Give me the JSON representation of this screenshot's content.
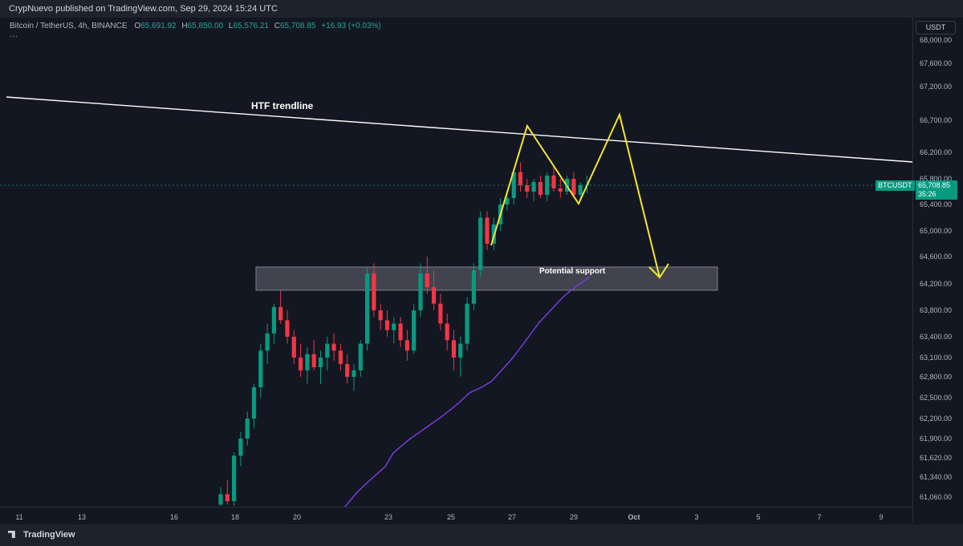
{
  "header": {
    "published": "CrypNuevo published on TradingView.com, Sep 29, 2024 15:24 UTC"
  },
  "legend": {
    "symbol": "Bitcoin / TetherUS, 4h, BINANCE",
    "o_key": "O",
    "o_val": "65,691.92",
    "h_key": "H",
    "h_val": "65,850.00",
    "l_key": "L",
    "l_val": "65,576.21",
    "c_key": "C",
    "c_val": "65,708.85",
    "chg": "+16.93 (+0.03%)",
    "more": "···"
  },
  "price_axis": {
    "currency": "USDT",
    "last_price": "65,708.85",
    "countdown": "35:26",
    "ticker": "BTCUSDT",
    "ticks": [
      "68,000.00",
      "67,600.00",
      "67,200.00",
      "66,700.00",
      "66,200.00",
      "65,800.00",
      "65,400.00",
      "65,000.00",
      "64,600.00",
      "64,200.00",
      "63,800.00",
      "63,400.00",
      "63,100.00",
      "62,800.00",
      "62,500.00",
      "62,200.00",
      "61,900.00",
      "61,620.00",
      "61,340.00",
      "61,060.00"
    ]
  },
  "time_axis": {
    "ticks": [
      "11",
      "13",
      "16",
      "18",
      "20",
      "23",
      "25",
      "27",
      "29",
      "Oct",
      "3",
      "5",
      "7",
      "9"
    ]
  },
  "annotations": {
    "trendline_label": "HTF trendline",
    "support_label": "Potential support"
  },
  "footer": {
    "brand": "TradingView"
  },
  "colors": {
    "background": "#131722",
    "up": "#089981",
    "down": "#f23645",
    "ma": "#7b3fe4",
    "pattern": "#f5e532",
    "trendline": "#ffffff",
    "zone": "#5d606b"
  },
  "chart_data": {
    "type": "candlestick",
    "symbol": "BTCUSDT",
    "timeframe": "4h",
    "ylim": [
      60900,
      68200
    ],
    "x_ticks": [
      "11",
      "13",
      "16",
      "18",
      "20",
      "23",
      "25",
      "27",
      "29",
      "Oct",
      "3",
      "5",
      "7",
      "9"
    ],
    "candles_ohlc": [
      [
        60950,
        61200,
        60800,
        61100
      ],
      [
        61100,
        61300,
        60950,
        61000
      ],
      [
        61000,
        61700,
        60900,
        61650
      ],
      [
        61650,
        62000,
        61500,
        61900
      ],
      [
        61900,
        62300,
        61800,
        62200
      ],
      [
        62200,
        62700,
        62050,
        62650
      ],
      [
        62650,
        63300,
        62500,
        63200
      ],
      [
        63200,
        63600,
        63000,
        63450
      ],
      [
        63450,
        63900,
        63300,
        63850
      ],
      [
        63850,
        64100,
        63600,
        63650
      ],
      [
        63650,
        63800,
        63300,
        63400
      ],
      [
        63400,
        63500,
        63000,
        63100
      ],
      [
        63100,
        63300,
        62800,
        62900
      ],
      [
        62900,
        63250,
        62700,
        63150
      ],
      [
        63150,
        63350,
        62900,
        62950
      ],
      [
        62950,
        63200,
        62700,
        63100
      ],
      [
        63100,
        63400,
        62900,
        63300
      ],
      [
        63300,
        63450,
        63050,
        63200
      ],
      [
        63200,
        63300,
        62900,
        63000
      ],
      [
        63000,
        63150,
        62700,
        62800
      ],
      [
        62800,
        63000,
        62600,
        62900
      ],
      [
        62900,
        63350,
        62800,
        63300
      ],
      [
        63300,
        64450,
        63200,
        64350
      ],
      [
        64350,
        64500,
        63700,
        63800
      ],
      [
        63800,
        63900,
        63500,
        63650
      ],
      [
        63650,
        63800,
        63400,
        63500
      ],
      [
        63500,
        63700,
        63300,
        63600
      ],
      [
        63600,
        63700,
        63250,
        63350
      ],
      [
        63350,
        63500,
        63050,
        63200
      ],
      [
        63200,
        63900,
        63150,
        63800
      ],
      [
        63800,
        64500,
        63700,
        64350
      ],
      [
        64350,
        64600,
        64050,
        64150
      ],
      [
        64150,
        64400,
        63800,
        63900
      ],
      [
        63900,
        64050,
        63500,
        63600
      ],
      [
        63600,
        63750,
        63200,
        63350
      ],
      [
        63350,
        63500,
        62900,
        63100
      ],
      [
        63100,
        63400,
        62800,
        63300
      ],
      [
        63300,
        64000,
        63200,
        63900
      ],
      [
        63900,
        64500,
        63800,
        64400
      ],
      [
        64400,
        65300,
        64300,
        65200
      ],
      [
        65200,
        65300,
        64700,
        64800
      ],
      [
        64800,
        65200,
        64700,
        65100
      ],
      [
        65100,
        65500,
        65000,
        65400
      ],
      [
        65400,
        65600,
        65300,
        65500
      ],
      [
        65500,
        65950,
        65400,
        65900
      ],
      [
        65900,
        66050,
        65600,
        65700
      ],
      [
        65700,
        65800,
        65500,
        65600
      ],
      [
        65600,
        65800,
        65450,
        65750
      ],
      [
        65750,
        65850,
        65500,
        65550
      ],
      [
        65550,
        65900,
        65450,
        65850
      ],
      [
        65850,
        66000,
        65600,
        65650
      ],
      [
        65650,
        65800,
        65500,
        65600
      ],
      [
        65600,
        65850,
        65550,
        65800
      ],
      [
        65800,
        65900,
        65500,
        65550
      ],
      [
        65550,
        65750,
        65450,
        65700
      ],
      [
        65692,
        65850,
        65576,
        65709
      ]
    ],
    "last_price": 65708.85,
    "moving_average": [
      [
        61000,
        null
      ],
      [
        61150,
        null
      ],
      [
        61300,
        null
      ],
      [
        61500,
        null
      ],
      [
        61700,
        null
      ],
      [
        61850,
        null
      ],
      [
        62000,
        null
      ],
      [
        62150,
        null
      ],
      [
        62300,
        null
      ],
      [
        62500,
        null
      ],
      [
        62700,
        null
      ],
      [
        62900,
        null
      ],
      [
        63150,
        null
      ],
      [
        63400,
        null
      ],
      [
        63650,
        null
      ],
      [
        63900,
        null
      ],
      [
        64100,
        null
      ],
      [
        64200,
        null
      ]
    ],
    "support_zone": [
      64150,
      64500
    ],
    "trendline_label": "HTF trendline",
    "support_label": "Potential support"
  }
}
